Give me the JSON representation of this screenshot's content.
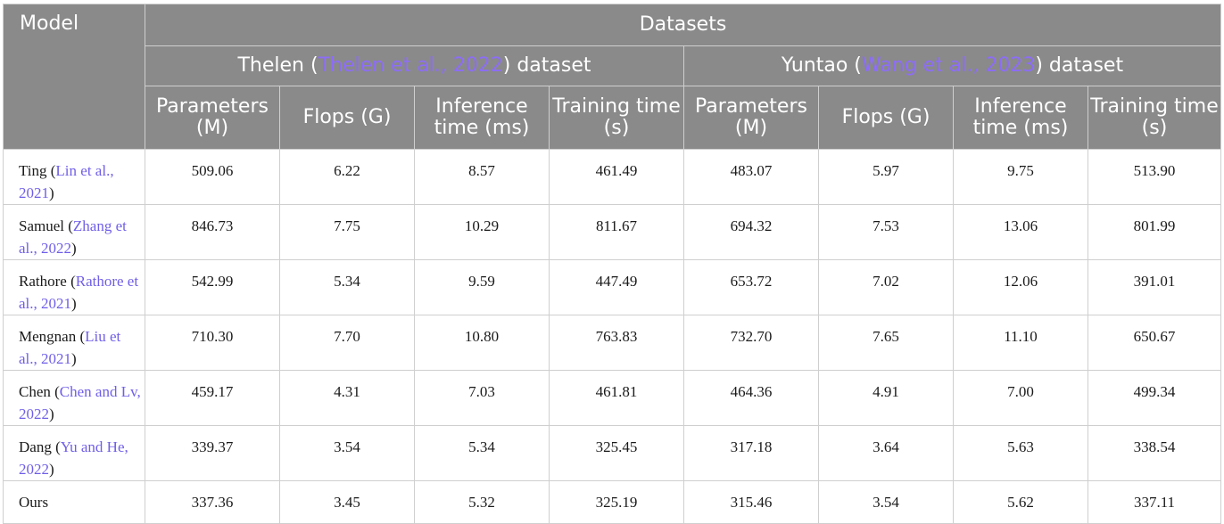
{
  "colors": {
    "header_bg": "#8a8a8a",
    "header_text": "#ffffff",
    "citation": "#6f5ee8"
  },
  "header": {
    "model": "Model",
    "datasets": "Datasets",
    "thelen": {
      "name": "Thelen (",
      "ref": "Thelen et al., 2022",
      "suffix": ") dataset"
    },
    "yuntao": {
      "name": "Yuntao (",
      "ref": "Wang et al., 2023",
      "suffix": ") dataset"
    },
    "columns": [
      "Parameters (M)",
      "Flops (G)",
      "Inference time (ms)",
      "Training time (s)",
      "Parameters (M)",
      "Flops (G)",
      "Inference time (ms)",
      "Training time (s)"
    ]
  },
  "rows": [
    {
      "name": "Ting (",
      "ref": "Lin et al., 2021",
      "close": ")",
      "values": [
        "509.06",
        "6.22",
        "8.57",
        "461.49",
        "483.07",
        "5.97",
        "9.75",
        "513.90"
      ]
    },
    {
      "name": "Samuel (",
      "ref": "Zhang et al., 2022",
      "close": ")",
      "values": [
        "846.73",
        "7.75",
        "10.29",
        "811.67",
        "694.32",
        "7.53",
        "13.06",
        "801.99"
      ]
    },
    {
      "name": "Rathore (",
      "ref": "Rathore et al., 2021",
      "close": ")",
      "values": [
        "542.99",
        "5.34",
        "9.59",
        "447.49",
        "653.72",
        "7.02",
        "12.06",
        "391.01"
      ]
    },
    {
      "name": "Mengnan (",
      "ref": "Liu et al., 2021",
      "close": ")",
      "values": [
        "710.30",
        "7.70",
        "10.80",
        "763.83",
        "732.70",
        "7.65",
        "11.10",
        "650.67"
      ]
    },
    {
      "name": "Chen (",
      "ref": "Chen and Lv, 2022",
      "close": ")",
      "values": [
        "459.17",
        "4.31",
        "7.03",
        "461.81",
        "464.36",
        "4.91",
        "7.00",
        "499.34"
      ]
    },
    {
      "name": "Dang (",
      "ref": "Yu and He, 2022",
      "close": ")",
      "values": [
        "339.37",
        "3.54",
        "5.34",
        "325.45",
        "317.18",
        "3.64",
        "5.63",
        "338.54"
      ]
    },
    {
      "name": "Ours",
      "ref": "",
      "close": "",
      "values": [
        "337.36",
        "3.45",
        "5.32",
        "325.19",
        "315.46",
        "3.54",
        "5.62",
        "337.11"
      ]
    }
  ]
}
